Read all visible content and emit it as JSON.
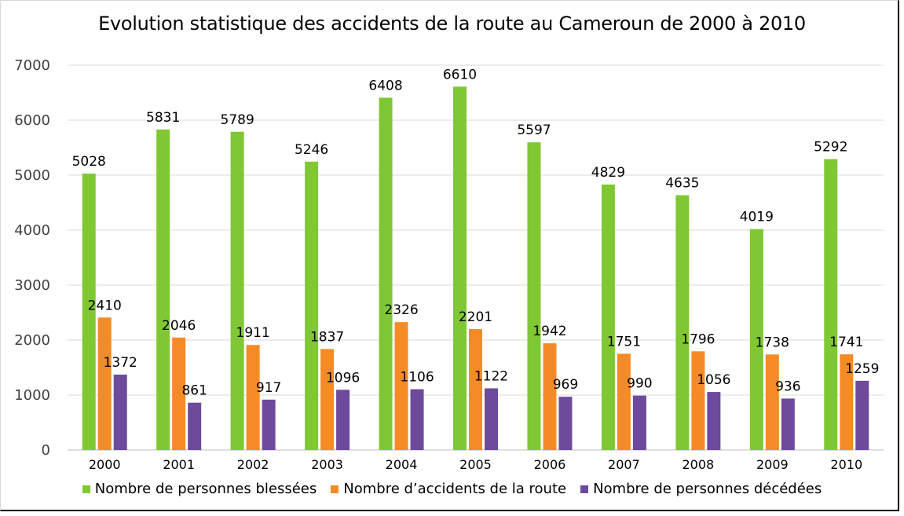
{
  "chart_data": {
    "type": "bar",
    "title": "Evolution statistique des accidents de la route au Cameroun de 2000 à 2010",
    "xlabel": "",
    "ylabel": "",
    "ylim": [
      0,
      7000
    ],
    "yticks": [
      "0",
      "1000",
      "2000",
      "3000",
      "4000",
      "5000",
      "6000",
      "7000"
    ],
    "ytick_values": [
      0,
      1000,
      2000,
      3000,
      4000,
      5000,
      6000,
      7000
    ],
    "grid": true,
    "legend_position": "bottom",
    "categories": [
      "2000",
      "2001",
      "2002",
      "2003",
      "2004",
      "2005",
      "2006",
      "2007",
      "2008",
      "2009",
      "2010"
    ],
    "series": [
      {
        "name": "Nombre de personnes blessées",
        "color": "#7fc833",
        "values": [
          5028,
          5831,
          5789,
          5246,
          6408,
          6610,
          5597,
          4829,
          4635,
          4019,
          5292
        ]
      },
      {
        "name": "Nombre d’accidents de la route",
        "color": "#f58b26",
        "values": [
          2410,
          2046,
          1911,
          1837,
          2326,
          2201,
          1942,
          1751,
          1796,
          1738,
          1741
        ]
      },
      {
        "name": "Nombre de personnes décédées",
        "color": "#6d4a9b",
        "values": [
          1372,
          861,
          917,
          1096,
          1106,
          1122,
          969,
          990,
          1056,
          936,
          1259
        ]
      }
    ]
  }
}
